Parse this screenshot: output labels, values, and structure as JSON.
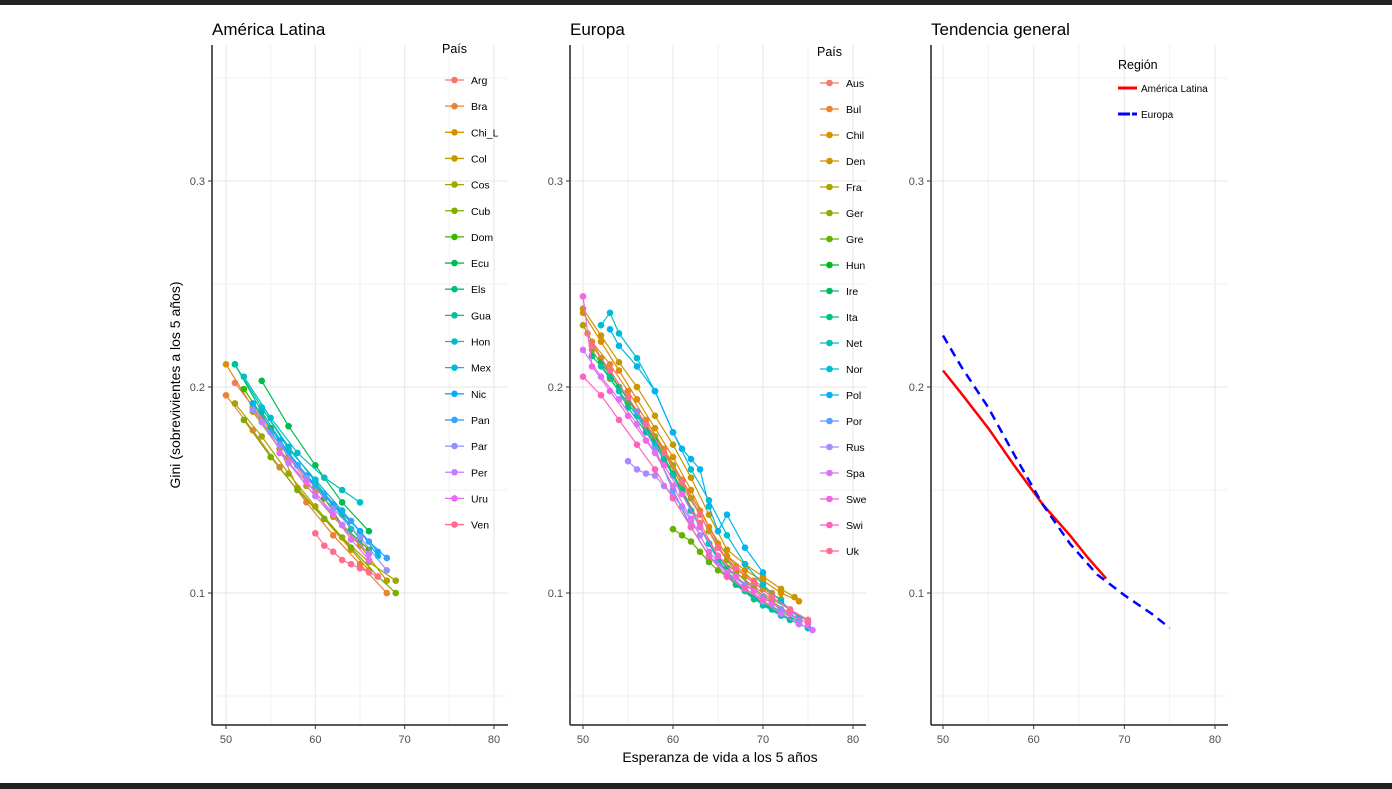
{
  "chart_data": [
    {
      "type": "line",
      "title": "América Latina",
      "xlabel": "",
      "ylabel": "Gini (sobrevivientes a los 5 años)",
      "xlim": [
        48.5,
        81.5
      ],
      "ylim": [
        0.036,
        0.366
      ],
      "xticks": [
        "50",
        "60",
        "70",
        "80"
      ],
      "yticks": [
        "0.1",
        "0.2",
        "0.3"
      ],
      "grid": true,
      "legend": {
        "title": "País",
        "placement": "right-inside"
      },
      "series": [
        {
          "name": "Arg",
          "color": "#F8766D",
          "x": [
            51,
            54,
            57,
            60,
            63,
            66
          ],
          "y": [
            0.202,
            0.185,
            0.166,
            0.149,
            0.133,
            0.119
          ]
        },
        {
          "name": "Bra",
          "color": "#EA8331",
          "x": [
            50,
            53,
            56,
            59,
            62,
            65,
            68
          ],
          "y": [
            0.196,
            0.179,
            0.161,
            0.144,
            0.128,
            0.114,
            0.1
          ]
        },
        {
          "name": "Chi_L",
          "color": "#D89000",
          "x": [
            50,
            53,
            56,
            58,
            61,
            64,
            66
          ],
          "y": [
            0.211,
            0.19,
            0.17,
            0.151,
            0.136,
            0.121,
            0.111
          ]
        },
        {
          "name": "Col",
          "color": "#C09B00",
          "x": [
            53,
            56,
            59,
            62,
            65,
            68
          ],
          "y": [
            0.188,
            0.17,
            0.152,
            0.137,
            0.123,
            0.106
          ]
        },
        {
          "name": "Cos",
          "color": "#A3A500",
          "x": [
            51,
            54,
            57,
            60,
            63,
            66,
            69
          ],
          "y": [
            0.192,
            0.176,
            0.158,
            0.142,
            0.127,
            0.115,
            0.106
          ]
        },
        {
          "name": "Cub",
          "color": "#7CAE00",
          "x": [
            52,
            55,
            58,
            61,
            64,
            67,
            69
          ],
          "y": [
            0.184,
            0.166,
            0.15,
            0.136,
            0.122,
            0.108,
            0.1
          ]
        },
        {
          "name": "Dom",
          "color": "#39B600",
          "x": [
            52,
            55,
            58,
            61,
            63,
            66
          ],
          "y": [
            0.199,
            0.18,
            0.162,
            0.146,
            0.133,
            0.121
          ]
        },
        {
          "name": "Ecu",
          "color": "#00BB4E",
          "x": [
            54,
            57,
            60,
            63,
            66
          ],
          "y": [
            0.203,
            0.181,
            0.162,
            0.144,
            0.13
          ]
        },
        {
          "name": "Els",
          "color": "#00BF7D",
          "x": [
            51,
            54,
            57,
            60,
            63,
            65
          ],
          "y": [
            0.211,
            0.188,
            0.168,
            0.152,
            0.138,
            0.126
          ]
        },
        {
          "name": "Gua",
          "color": "#00C1A3",
          "x": [
            51,
            54,
            57,
            60,
            62,
            64
          ],
          "y": [
            0.211,
            0.19,
            0.171,
            0.154,
            0.143,
            0.131
          ]
        },
        {
          "name": "Hon",
          "color": "#00BFC4",
          "x": [
            52,
            55,
            58,
            61,
            63,
            65
          ],
          "y": [
            0.205,
            0.185,
            0.168,
            0.156,
            0.15,
            0.144
          ]
        },
        {
          "name": "Mex",
          "color": "#00BAE0",
          "x": [
            54,
            57,
            60,
            63,
            65,
            67
          ],
          "y": [
            0.19,
            0.17,
            0.155,
            0.14,
            0.13,
            0.118
          ]
        },
        {
          "name": "Nic",
          "color": "#00B0F6",
          "x": [
            53,
            56,
            59,
            62,
            65,
            67
          ],
          "y": [
            0.192,
            0.174,
            0.157,
            0.143,
            0.13,
            0.12
          ]
        },
        {
          "name": "Pan",
          "color": "#35A2FF",
          "x": [
            55,
            58,
            61,
            64,
            66,
            68
          ],
          "y": [
            0.178,
            0.162,
            0.148,
            0.135,
            0.125,
            0.117
          ]
        },
        {
          "name": "Par",
          "color": "#9590FF",
          "x": [
            53,
            56,
            59,
            62,
            65,
            68
          ],
          "y": [
            0.189,
            0.172,
            0.156,
            0.141,
            0.127,
            0.111
          ]
        },
        {
          "name": "Per",
          "color": "#C77CFF",
          "x": [
            54,
            57,
            60,
            63,
            66
          ],
          "y": [
            0.183,
            0.163,
            0.147,
            0.133,
            0.119
          ]
        },
        {
          "name": "Uru",
          "color": "#E76BF3",
          "x": [
            56,
            59,
            62,
            64,
            66
          ],
          "y": [
            0.168,
            0.154,
            0.138,
            0.126,
            0.116
          ]
        },
        {
          "name": "Ven",
          "color": "#FF6C90",
          "x": [
            60,
            61,
            62,
            63,
            64,
            65,
            66,
            67
          ],
          "y": [
            0.129,
            0.123,
            0.12,
            0.116,
            0.114,
            0.112,
            0.11,
            0.108
          ]
        }
      ]
    },
    {
      "type": "line",
      "title": "Europa",
      "xlabel": "Esperanza de vida a los 5 años",
      "ylabel": "",
      "xlim": [
        48.5,
        81.5
      ],
      "ylim": [
        0.036,
        0.366
      ],
      "xticks": [
        "50",
        "60",
        "70",
        "80"
      ],
      "yticks": [
        "0.1",
        "0.2",
        "0.3"
      ],
      "grid": true,
      "legend": {
        "title": "País",
        "placement": "right-inside"
      },
      "series": [
        {
          "name": "Aus",
          "color": "#F8766D",
          "x": [
            50.5,
            53,
            55,
            57,
            59,
            61,
            63,
            65,
            67,
            69,
            71,
            73,
            75
          ],
          "y": [
            0.226,
            0.206,
            0.194,
            0.18,
            0.166,
            0.15,
            0.134,
            0.118,
            0.11,
            0.103,
            0.097,
            0.092,
            0.086
          ]
        },
        {
          "name": "Bul",
          "color": "#EA8331",
          "x": [
            51,
            53,
            55,
            57,
            59,
            61,
            63,
            65,
            67,
            69,
            71
          ],
          "y": [
            0.222,
            0.211,
            0.198,
            0.184,
            0.17,
            0.155,
            0.14,
            0.124,
            0.113,
            0.106,
            0.1
          ]
        },
        {
          "name": "Chil",
          "color": "#DB8E00",
          "x": [
            50,
            52,
            54,
            56,
            58,
            60,
            62,
            64,
            66,
            68,
            70,
            72,
            74
          ],
          "y": [
            0.236,
            0.222,
            0.208,
            0.194,
            0.18,
            0.166,
            0.15,
            0.132,
            0.118,
            0.111,
            0.106,
            0.1,
            0.096
          ]
        },
        {
          "name": "Den",
          "color": "#C79800",
          "x": [
            50,
            52,
            54,
            56,
            58,
            60,
            62,
            64,
            66,
            68,
            70,
            72,
            73.5
          ],
          "y": [
            0.238,
            0.225,
            0.212,
            0.2,
            0.186,
            0.172,
            0.156,
            0.138,
            0.121,
            0.114,
            0.108,
            0.102,
            0.098
          ]
        },
        {
          "name": "Fra",
          "color": "#AEA200",
          "x": [
            50,
            52,
            54,
            56,
            58,
            60,
            62,
            64,
            66,
            68,
            70,
            72
          ],
          "y": [
            0.23,
            0.214,
            0.2,
            0.188,
            0.176,
            0.162,
            0.146,
            0.13,
            0.116,
            0.108,
            0.102,
            0.097
          ]
        },
        {
          "name": "Ger",
          "color": "#8FAA00",
          "x": [
            51,
            53,
            55,
            57,
            59,
            61,
            63,
            65,
            67,
            69,
            71,
            73
          ],
          "y": [
            0.218,
            0.204,
            0.192,
            0.18,
            0.168,
            0.152,
            0.138,
            0.122,
            0.11,
            0.102,
            0.096,
            0.09
          ]
        },
        {
          "name": "Gre",
          "color": "#64B200",
          "x": [
            60,
            61,
            62,
            63,
            64,
            65,
            66,
            67,
            68,
            70,
            72,
            74
          ],
          "y": [
            0.131,
            0.128,
            0.125,
            0.12,
            0.115,
            0.111,
            0.108,
            0.104,
            0.101,
            0.096,
            0.091,
            0.086
          ]
        },
        {
          "name": "Hun",
          "color": "#00B81F",
          "x": [
            58,
            60,
            62,
            64,
            66,
            68,
            70,
            72,
            74
          ],
          "y": [
            0.17,
            0.15,
            0.132,
            0.118,
            0.108,
            0.101,
            0.095,
            0.09,
            0.085
          ]
        },
        {
          "name": "Ire",
          "color": "#00BD5C",
          "x": [
            52,
            54,
            56,
            58,
            60,
            62,
            64,
            66,
            68,
            70,
            72,
            74
          ],
          "y": [
            0.212,
            0.2,
            0.188,
            0.174,
            0.158,
            0.14,
            0.124,
            0.112,
            0.104,
            0.098,
            0.092,
            0.087
          ]
        },
        {
          "name": "Ita",
          "color": "#00C08B",
          "x": [
            51,
            53,
            55,
            57,
            59,
            61,
            63,
            65,
            67,
            69,
            71,
            73,
            75
          ],
          "y": [
            0.215,
            0.205,
            0.19,
            0.178,
            0.165,
            0.15,
            0.132,
            0.116,
            0.104,
            0.097,
            0.092,
            0.087,
            0.083
          ]
        },
        {
          "name": "Net",
          "color": "#00C1B2",
          "x": [
            52,
            54,
            56,
            58,
            60,
            62,
            64,
            66,
            68,
            70,
            72,
            74,
            75
          ],
          "y": [
            0.21,
            0.198,
            0.186,
            0.172,
            0.157,
            0.14,
            0.124,
            0.11,
            0.101,
            0.094,
            0.089,
            0.085,
            0.083
          ]
        },
        {
          "name": "Nor",
          "color": "#00BDD4",
          "x": [
            52,
            53,
            54,
            56,
            58,
            60,
            62,
            64,
            66,
            68,
            70,
            72,
            74
          ],
          "y": [
            0.23,
            0.236,
            0.226,
            0.214,
            0.198,
            0.178,
            0.16,
            0.145,
            0.128,
            0.114,
            0.104,
            0.096,
            0.088
          ]
        },
        {
          "name": "Pol",
          "color": "#00B4EF",
          "x": [
            53,
            54,
            56,
            58,
            60,
            61,
            62,
            63,
            64,
            65,
            66,
            68,
            70
          ],
          "y": [
            0.228,
            0.22,
            0.21,
            0.198,
            0.178,
            0.17,
            0.165,
            0.16,
            0.142,
            0.13,
            0.138,
            0.122,
            0.11
          ]
        },
        {
          "name": "Por",
          "color": "#619CFF",
          "x": [
            56,
            58,
            60,
            62,
            64,
            66,
            68,
            70,
            72,
            74
          ],
          "y": [
            0.188,
            0.17,
            0.15,
            0.132,
            0.118,
            0.11,
            0.104,
            0.098,
            0.092,
            0.087
          ]
        },
        {
          "name": "Rus",
          "color": "#AC88FF",
          "x": [
            55,
            56,
            57,
            58,
            59,
            60,
            61,
            62,
            63
          ],
          "y": [
            0.164,
            0.16,
            0.158,
            0.157,
            0.152,
            0.147,
            0.142,
            0.135,
            0.128
          ]
        },
        {
          "name": "Spa",
          "color": "#DB72FB",
          "x": [
            50,
            52,
            54,
            56,
            58,
            60,
            62,
            64,
            66,
            68,
            70,
            72,
            74,
            75.5
          ],
          "y": [
            0.218,
            0.205,
            0.194,
            0.182,
            0.168,
            0.152,
            0.136,
            0.12,
            0.11,
            0.102,
            0.096,
            0.09,
            0.085,
            0.082
          ]
        },
        {
          "name": "Swe",
          "color": "#F564E3",
          "x": [
            50,
            51,
            53,
            55,
            57,
            59,
            61,
            63,
            65,
            67,
            69,
            71,
            73,
            75
          ],
          "y": [
            0.244,
            0.21,
            0.198,
            0.186,
            0.174,
            0.162,
            0.148,
            0.132,
            0.118,
            0.108,
            0.101,
            0.095,
            0.09,
            0.085
          ]
        },
        {
          "name": "Swi",
          "color": "#FF62BC",
          "x": [
            50,
            52,
            54,
            56,
            58,
            60,
            62,
            64,
            66,
            68,
            70
          ],
          "y": [
            0.205,
            0.196,
            0.184,
            0.172,
            0.16,
            0.146,
            0.132,
            0.118,
            0.108,
            0.102,
            0.097
          ]
        },
        {
          "name": "Uk",
          "color": "#FF6C90",
          "x": [
            51,
            53,
            55,
            57,
            59,
            61,
            63,
            65,
            67,
            69,
            71,
            73,
            75
          ],
          "y": [
            0.22,
            0.208,
            0.195,
            0.182,
            0.168,
            0.154,
            0.138,
            0.122,
            0.112,
            0.105,
            0.098,
            0.092,
            0.087
          ]
        }
      ]
    },
    {
      "type": "line",
      "title": "Tendencia general",
      "xlabel": "",
      "ylabel": "",
      "xlim": [
        48.5,
        81.5
      ],
      "ylim": [
        0.036,
        0.366
      ],
      "xticks": [
        "50",
        "60",
        "70",
        "80"
      ],
      "yticks": [
        "0.1",
        "0.2",
        "0.3"
      ],
      "grid": true,
      "legend": {
        "title": "Región",
        "placement": "top-right"
      },
      "series": [
        {
          "name": "América Latina",
          "color": "#FF0000",
          "dash": false,
          "x": [
            50,
            52,
            55,
            58,
            61,
            64,
            66,
            68
          ],
          "y": [
            0.208,
            0.197,
            0.18,
            0.161,
            0.143,
            0.128,
            0.117,
            0.107
          ]
        },
        {
          "name": "Europa",
          "color": "#0000FF",
          "dash": true,
          "x": [
            50,
            52,
            55,
            58,
            61,
            64,
            67,
            70,
            73,
            75
          ],
          "y": [
            0.225,
            0.21,
            0.19,
            0.166,
            0.143,
            0.124,
            0.109,
            0.099,
            0.09,
            0.083
          ]
        }
      ]
    }
  ]
}
